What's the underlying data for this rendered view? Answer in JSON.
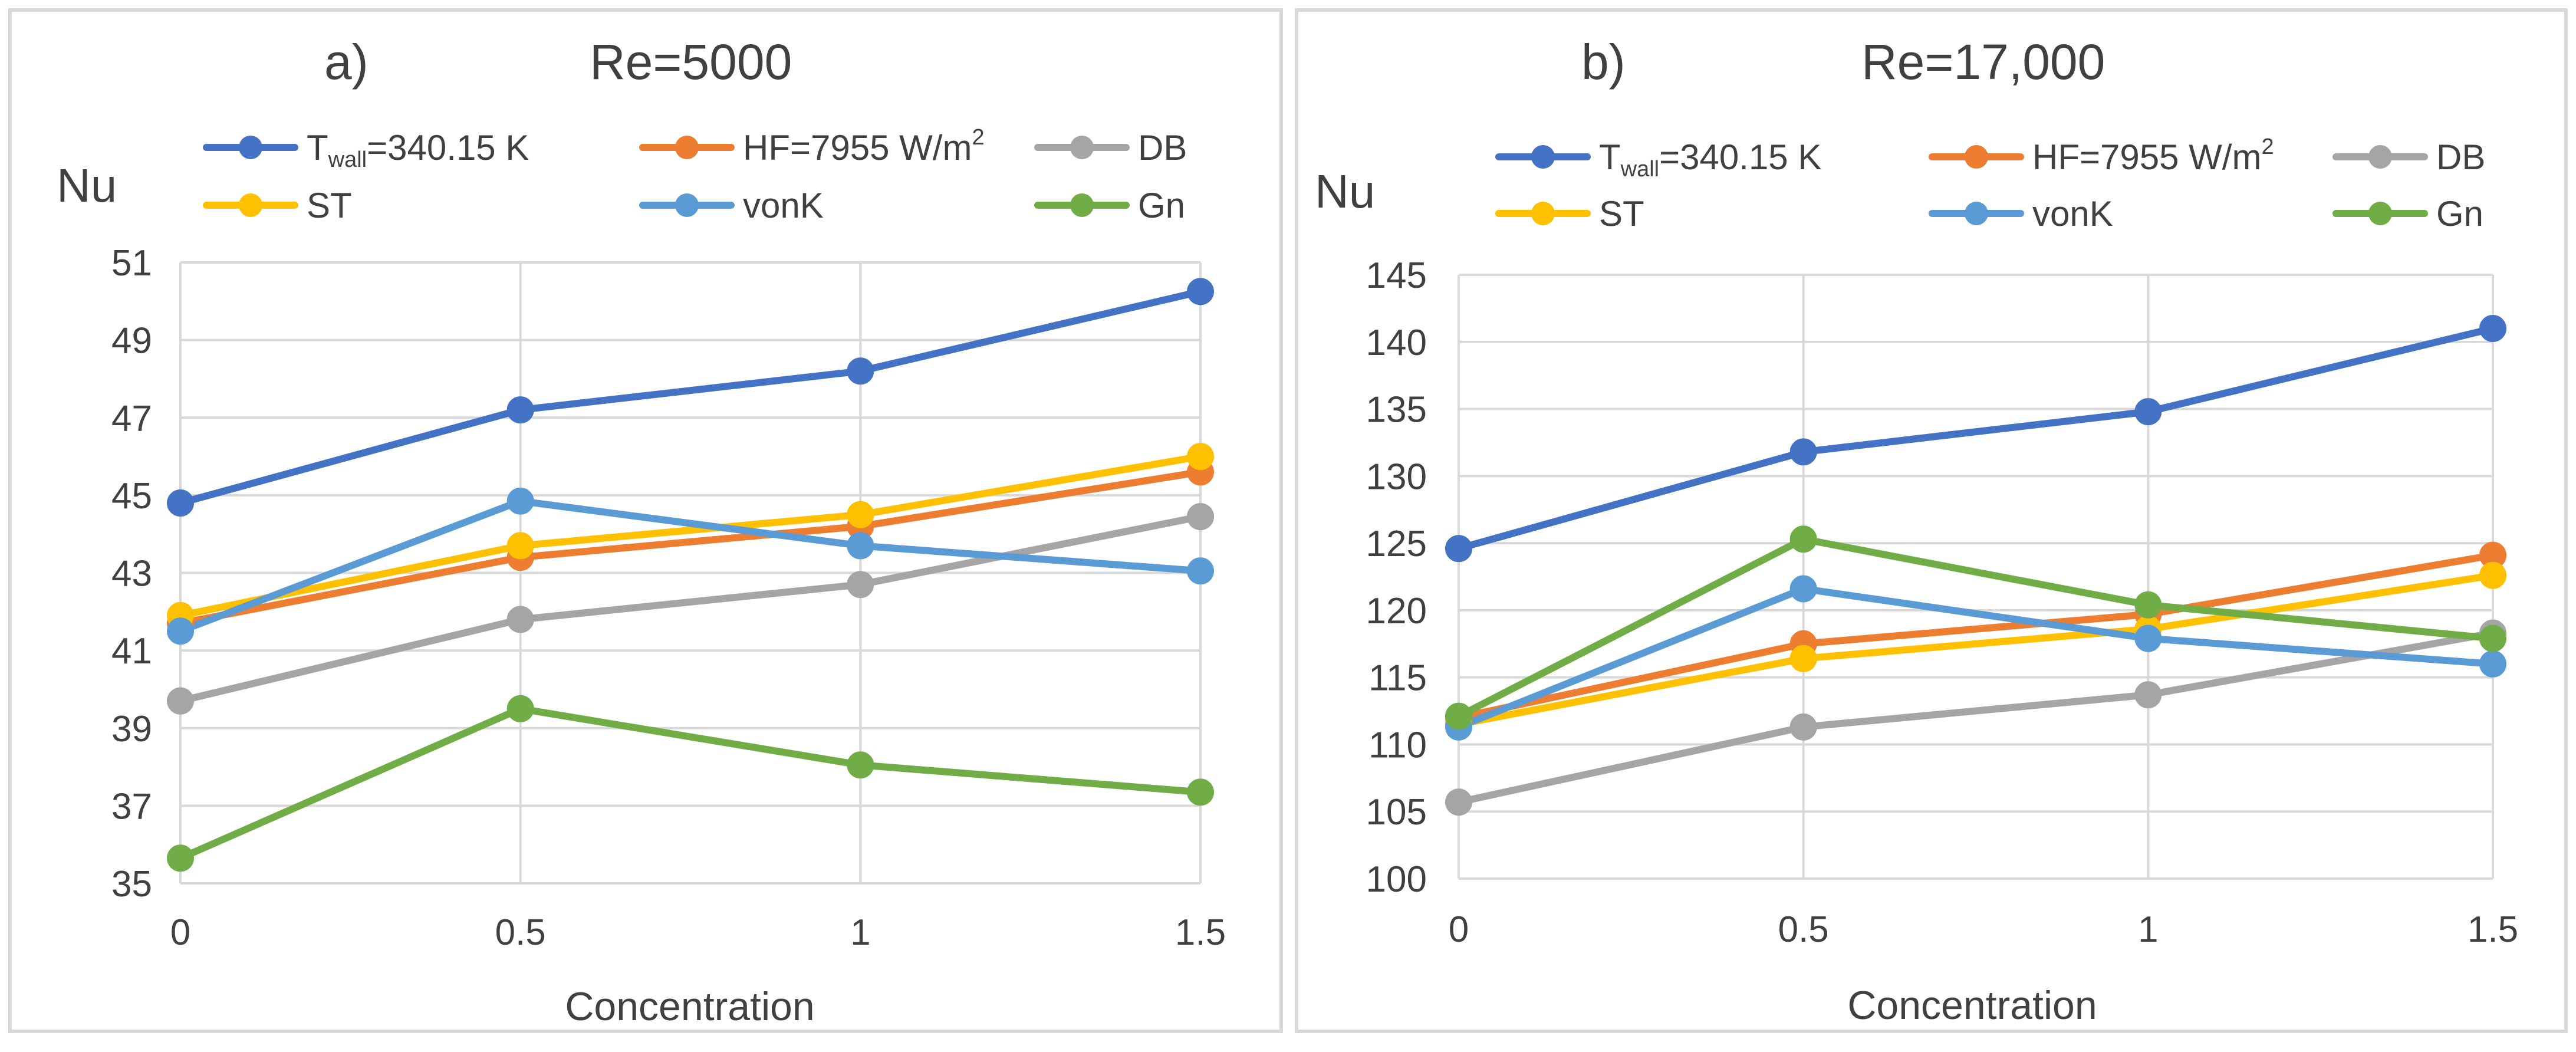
{
  "chart_data": [
    {
      "type": "line",
      "panel_label": "a)",
      "title": "Re=5000",
      "ylabel": "Nu",
      "xlabel": "Concentration",
      "categories": [
        "0",
        "0.5",
        "1",
        "1.5"
      ],
      "ylim": [
        35,
        51
      ],
      "yticks": [
        35,
        37,
        39,
        41,
        43,
        45,
        47,
        49,
        51
      ],
      "grid": "vertical and horizontal",
      "series": [
        {
          "name_main": "T",
          "name_sub": "wall",
          "name_rest": "=340.15 K",
          "color": "#4472C4",
          "values": [
            44.8,
            47.2,
            48.2,
            50.25
          ]
        },
        {
          "name_main": "HF=7955 W/m",
          "name_sup": "2",
          "color": "#ED7D31",
          "values": [
            41.7,
            43.4,
            44.2,
            45.6
          ]
        },
        {
          "name_main": "DB",
          "color": "#A5A5A5",
          "values": [
            39.7,
            41.8,
            42.7,
            44.45
          ]
        },
        {
          "name_main": "ST",
          "color": "#FFC000",
          "values": [
            41.9,
            43.7,
            44.5,
            46.0
          ]
        },
        {
          "name_main": "vonK",
          "color": "#5B9BD5",
          "values": [
            41.5,
            44.85,
            43.7,
            43.05
          ]
        },
        {
          "name_main": "Gn",
          "color": "#70AD47",
          "values": [
            35.65,
            39.5,
            38.05,
            37.35
          ]
        }
      ]
    },
    {
      "type": "line",
      "panel_label": "b)",
      "title": "Re=17,000",
      "ylabel": "Nu",
      "xlabel": "Concentration",
      "categories": [
        "0",
        "0.5",
        "1",
        "1.5"
      ],
      "ylim": [
        100,
        145
      ],
      "yticks": [
        100,
        105,
        110,
        115,
        120,
        125,
        130,
        135,
        140,
        145
      ],
      "grid": "vertical and horizontal",
      "series": [
        {
          "name_main": "T",
          "name_sub": "wall",
          "name_rest": "=340.15 K",
          "color": "#4472C4",
          "values": [
            124.6,
            131.8,
            134.8,
            141.0
          ]
        },
        {
          "name_main": "HF=7955 W/m",
          "name_sup": "2",
          "color": "#ED7D31",
          "values": [
            112.0,
            117.5,
            119.7,
            124.1
          ]
        },
        {
          "name_main": "DB",
          "color": "#A5A5A5",
          "values": [
            105.7,
            111.3,
            113.7,
            118.3
          ]
        },
        {
          "name_main": "ST",
          "color": "#FFC000",
          "values": [
            111.5,
            116.4,
            118.6,
            122.6
          ]
        },
        {
          "name_main": "vonK",
          "color": "#5B9BD5",
          "values": [
            111.3,
            121.6,
            117.9,
            116.0
          ]
        },
        {
          "name_main": "Gn",
          "color": "#70AD47",
          "values": [
            112.1,
            125.3,
            120.4,
            117.9
          ]
        }
      ]
    }
  ]
}
